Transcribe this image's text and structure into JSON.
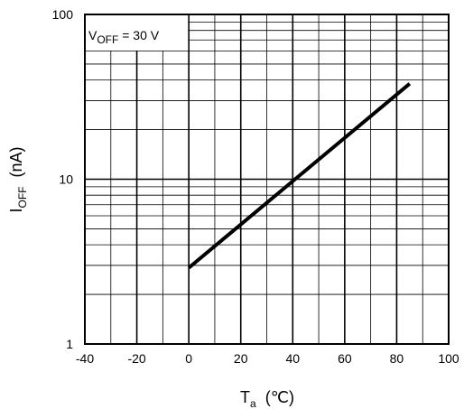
{
  "chart_data": {
    "type": "line",
    "x_axis": {
      "scale": "linear",
      "range": [
        -40,
        100
      ],
      "major_ticks": [
        -40,
        -20,
        0,
        20,
        40,
        60,
        80,
        100
      ],
      "tick_labels": [
        "-40",
        "-20",
        "0",
        "20",
        "40",
        "60",
        "80",
        "100"
      ],
      "label_main": "T",
      "label_sub": "a",
      "label_unit": "(℃)"
    },
    "y_axis": {
      "scale": "log",
      "range": [
        1,
        100
      ],
      "major_ticks": [
        1,
        10,
        100
      ],
      "tick_labels": [
        "1",
        "10",
        "100"
      ],
      "label_main": "I",
      "label_sub": "OFF",
      "label_unit": "(nA)"
    },
    "grid": true,
    "annotation": {
      "main": "V",
      "sub": "OFF",
      "rest": " = 30 V"
    },
    "series": [
      {
        "x": [
          0,
          85
        ],
        "y": [
          2.9,
          38
        ]
      }
    ],
    "colors": {
      "line": "#000000",
      "grid": "#000000",
      "background": "#ffffff"
    }
  }
}
